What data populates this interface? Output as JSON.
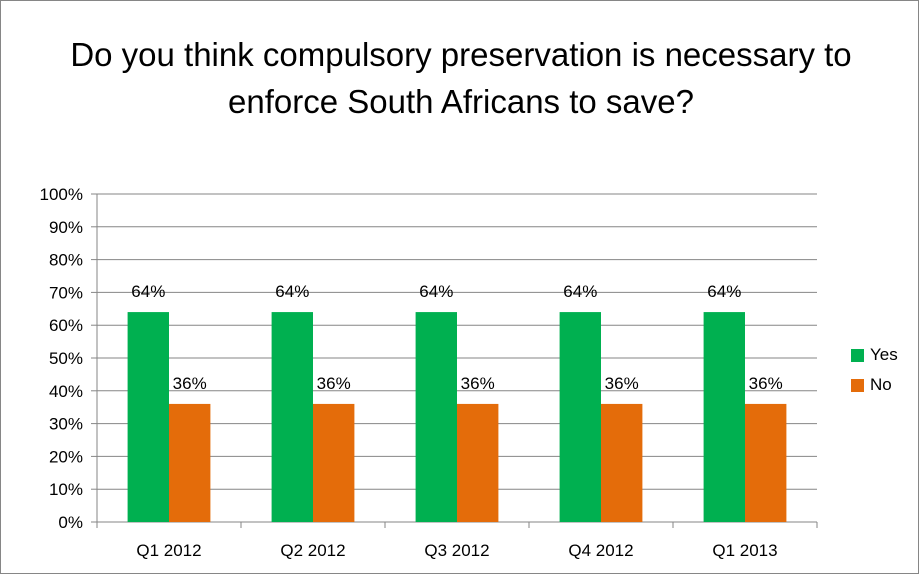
{
  "chart_data": {
    "type": "bar",
    "title": "Do you think compulsory preservation is necessary to enforce South Africans to save?",
    "categories": [
      "Q1 2012",
      "Q2 2012",
      "Q3 2012",
      "Q4 2012",
      "Q1 2013"
    ],
    "series": [
      {
        "name": "Yes",
        "values": [
          64,
          64,
          64,
          64,
          64
        ],
        "color": "#00b050"
      },
      {
        "name": "No",
        "values": [
          36,
          36,
          36,
          36,
          36
        ],
        "color": "#e46c0a"
      }
    ],
    "ylim": [
      0,
      100
    ],
    "yticks": [
      "0%",
      "10%",
      "20%",
      "30%",
      "40%",
      "50%",
      "60%",
      "70%",
      "80%",
      "90%",
      "100%"
    ],
    "value_suffix": "%",
    "grid": true,
    "legend_position": "right"
  }
}
